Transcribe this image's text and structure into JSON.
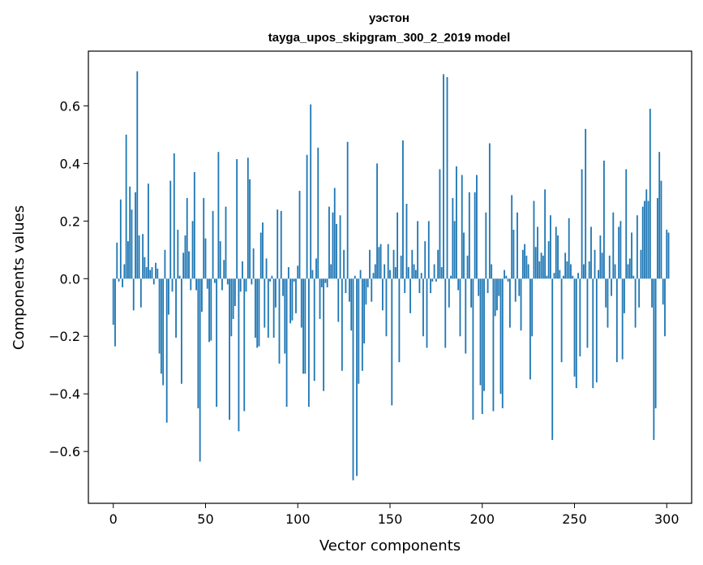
{
  "chart_data": {
    "type": "bar",
    "title": "уэстон",
    "subtitle": "tayga_upos_skipgram_300_2_2019 model",
    "xlabel": "Vector components",
    "ylabel": "Components values",
    "xlim": [
      -13.5,
      313.5
    ],
    "ylim": [
      -0.78,
      0.79
    ],
    "xticks": [
      0,
      50,
      100,
      150,
      200,
      250,
      300
    ],
    "yticks": [
      -0.6,
      -0.4,
      -0.2,
      0.0,
      0.2,
      0.4,
      0.6
    ],
    "ytick_labels": [
      "−0.6",
      "−0.4",
      "−0.2",
      "0.0",
      "0.2",
      "0.4",
      "0.6"
    ],
    "bar_color": "#1f77b4",
    "values": [
      -0.16,
      -0.235,
      0.125,
      -0.01,
      0.275,
      -0.03,
      0.05,
      0.5,
      0.13,
      0.32,
      0.24,
      -0.11,
      0.3,
      0.72,
      0.15,
      -0.1,
      0.155,
      0.075,
      0.04,
      0.33,
      0.03,
      0.04,
      -0.02,
      0.055,
      0.035,
      -0.26,
      -0.33,
      -0.37,
      0.1,
      -0.5,
      -0.125,
      0.34,
      -0.045,
      0.435,
      -0.205,
      0.17,
      0.01,
      -0.365,
      0.09,
      0.15,
      0.28,
      0.095,
      -0.04,
      0.2,
      0.37,
      -0.04,
      -0.45,
      -0.635,
      -0.115,
      0.28,
      0.14,
      -0.035,
      -0.22,
      -0.215,
      0.235,
      -0.015,
      -0.445,
      0.44,
      0.13,
      -0.04,
      0.065,
      0.25,
      -0.02,
      -0.49,
      -0.2,
      -0.14,
      -0.095,
      0.415,
      -0.53,
      -0.045,
      0.06,
      -0.46,
      -0.045,
      0.42,
      0.345,
      -0.02,
      0.105,
      -0.205,
      -0.24,
      -0.235,
      0.16,
      0.195,
      -0.17,
      0.07,
      -0.205,
      -0.01,
      0.01,
      -0.205,
      -0.1,
      0.24,
      -0.295,
      0.235,
      -0.06,
      -0.26,
      -0.445,
      0.04,
      -0.155,
      -0.145,
      -0.01,
      -0.12,
      0.045,
      0.305,
      -0.17,
      -0.33,
      -0.33,
      0.43,
      -0.445,
      0.605,
      0.03,
      -0.355,
      0.07,
      0.455,
      -0.14,
      -0.03,
      -0.39,
      -0.015,
      -0.03,
      0.25,
      0.05,
      0.23,
      0.315,
      0.19,
      -0.15,
      0.22,
      -0.32,
      0.1,
      -0.05,
      0.475,
      -0.08,
      -0.18,
      -0.7,
      0.01,
      -0.685,
      -0.365,
      0.03,
      -0.32,
      -0.225,
      -0.09,
      -0.03,
      0.1,
      -0.08,
      0.02,
      0.05,
      0.4,
      0.11,
      0.12,
      -0.11,
      0.05,
      -0.2,
      0.12,
      0.03,
      -0.44,
      0.1,
      0.04,
      0.23,
      -0.29,
      0.08,
      0.48,
      -0.05,
      0.26,
      0.04,
      -0.12,
      0.1,
      0.05,
      0.03,
      0.2,
      -0.05,
      0.02,
      -0.2,
      0.13,
      -0.24,
      0.2,
      -0.05,
      -0.01,
      0.05,
      -0.01,
      0.1,
      0.38,
      0.04,
      0.71,
      -0.24,
      0.7,
      -0.1,
      0.01,
      0.28,
      0.2,
      0.39,
      -0.04,
      -0.2,
      0.36,
      0.16,
      -0.26,
      0.08,
      0.3,
      -0.1,
      -0.49,
      0.3,
      0.36,
      -0.06,
      -0.37,
      -0.47,
      -0.39,
      0.23,
      -0.05,
      0.47,
      0.05,
      -0.46,
      -0.13,
      -0.11,
      -0.06,
      -0.4,
      -0.45,
      0.03,
      0.01,
      -0.01,
      -0.17,
      0.29,
      0.17,
      -0.08,
      0.23,
      -0.06,
      -0.18,
      0.1,
      0.12,
      0.08,
      0.05,
      -0.35,
      -0.2,
      0.27,
      0.11,
      0.18,
      0.06,
      0.09,
      0.08,
      0.31,
      0.01,
      0.13,
      0.22,
      -0.56,
      0.02,
      0.18,
      0.15,
      0.03,
      -0.29,
      0.01,
      0.09,
      0.06,
      0.21,
      0.05,
      0.01,
      -0.34,
      -0.38,
      0.02,
      -0.27,
      0.38,
      0.05,
      0.52,
      -0.24,
      0.06,
      0.18,
      -0.38,
      0.1,
      -0.36,
      0.03,
      0.15,
      0.09,
      0.41,
      -0.1,
      -0.17,
      0.08,
      -0.06,
      0.23,
      0.05,
      -0.29,
      0.18,
      0.2,
      -0.28,
      -0.12,
      0.38,
      0.05,
      0.07,
      0.16,
      0.01,
      -0.17,
      0.22,
      -0.1,
      0.1,
      0.25,
      0.27,
      0.31,
      0.27,
      0.59,
      -0.1,
      -0.56,
      -0.45,
      0.28,
      0.44,
      0.34,
      -0.09,
      -0.2,
      0.17,
      0.16
    ]
  }
}
